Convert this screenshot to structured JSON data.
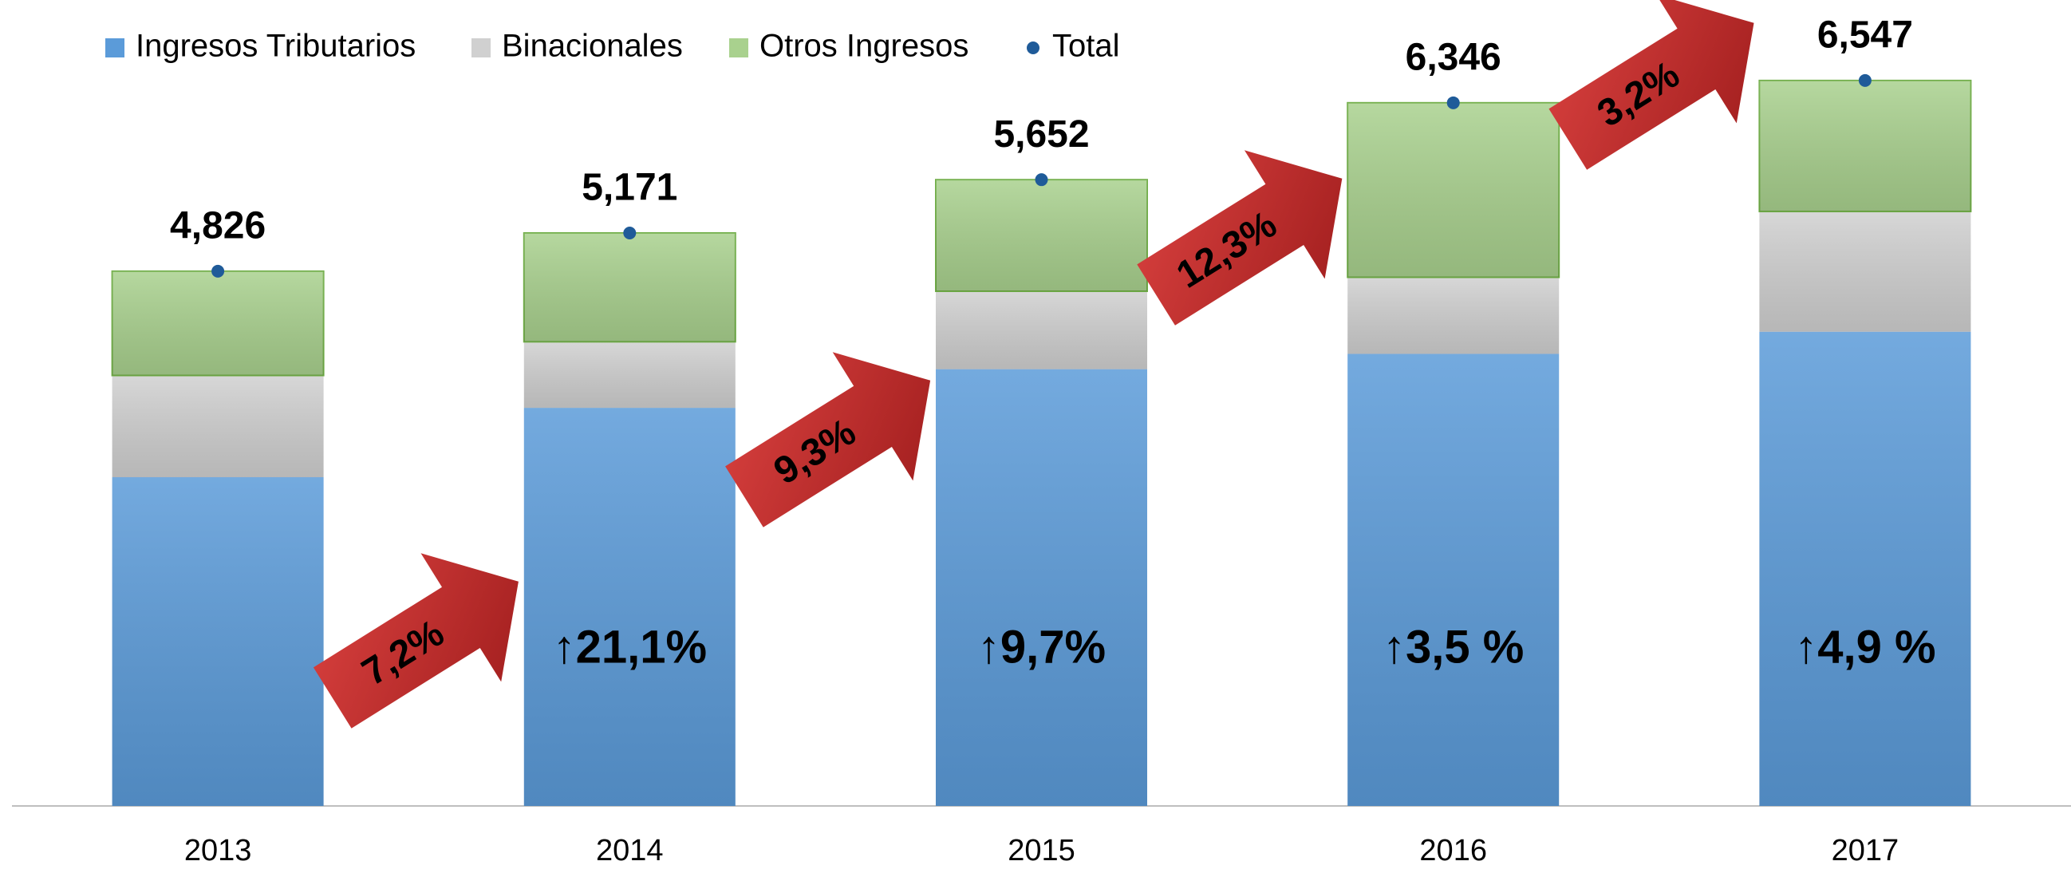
{
  "chart_data": {
    "type": "bar",
    "stacked": true,
    "categories": [
      "2013",
      "2014",
      "2015",
      "2016",
      "2017"
    ],
    "series": [
      {
        "name": "Ingresos Tributarios",
        "color": "#5b9bd9",
        "values": [
          2967,
          3593,
          3942,
          4080,
          4280
        ]
      },
      {
        "name": "Binacionales",
        "color": "#d0d0d0",
        "values": [
          918,
          596,
          703,
          691,
          1085
        ]
      },
      {
        "name": "Otros Ingresos",
        "color": "#a9d18e",
        "values": [
          941,
          982,
          1007,
          1575,
          1182
        ]
      },
      {
        "name": "Total",
        "type": "scatter",
        "color": "#1f5b99",
        "values": [
          4826,
          5171,
          5652,
          6346,
          6547
        ],
        "value_labels": [
          "4,826",
          "5,171",
          "5,652",
          "6,346",
          "6,547"
        ]
      }
    ],
    "total_growth_labels": [
      "7,2%",
      "9,3%",
      "12,3%",
      "3,2%"
    ],
    "tributarios_growth_labels": [
      "↑21,1%",
      "↑9,7%",
      "↑3,5 %",
      "↑4,9 %"
    ],
    "ylim": [
      0,
      7000
    ],
    "legend": "top-left"
  }
}
